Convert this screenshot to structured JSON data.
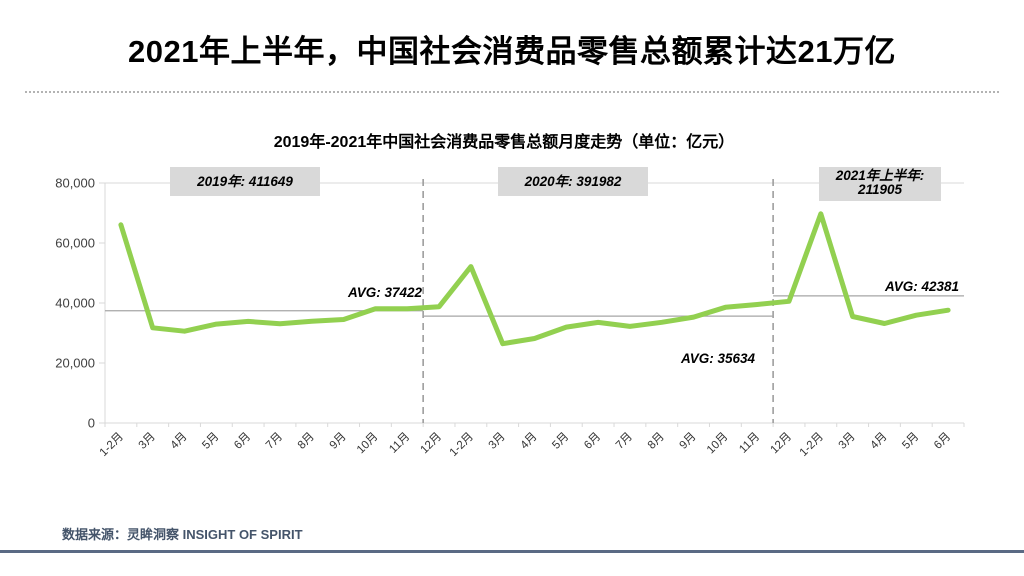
{
  "header": {
    "title": "2021年上半年，中国社会消费品零售总额累计达21万亿"
  },
  "footer": {
    "source": "数据来源：灵眸洞察 INSIGHT OF SPIRIT"
  },
  "chart_data": {
    "type": "line",
    "title": "2019年-2021年中国社会消费品零售总额月度走势（单位：亿元）",
    "categories": [
      "1-2月",
      "3月",
      "4月",
      "5月",
      "6月",
      "7月",
      "8月",
      "9月",
      "10月",
      "11月",
      "12月",
      "1-2月",
      "3月",
      "4月",
      "5月",
      "6月",
      "7月",
      "8月",
      "9月",
      "10月",
      "11月",
      "12月",
      "1-2月",
      "3月",
      "4月",
      "5月",
      "6月"
    ],
    "values": [
      66064,
      31726,
      30586,
      32956,
      33878,
      33073,
      33896,
      34495,
      38104,
      38094,
      38777,
      52130,
      26450,
      28178,
      31973,
      33526,
      32203,
      33571,
      35295,
      38576,
      39514,
      40566,
      69737,
      35484,
      33153,
      35945,
      37586
    ],
    "ylim": [
      0,
      80000
    ],
    "yticks": [
      0,
      20000,
      40000,
      60000,
      80000
    ],
    "ytick_labels": [
      "0",
      "20,000",
      "40,000",
      "60,000",
      "80,000"
    ],
    "grid": "top-border-only",
    "legend": "none",
    "sections": [
      {
        "label_lines": [
          "2019年: 411649"
        ],
        "total": 411649,
        "avg": 37422,
        "avg_label": "AVG: 37422",
        "bounds": [
          0,
          10
        ]
      },
      {
        "label_lines": [
          "2020年: 391982"
        ],
        "total": 391982,
        "avg": 35634,
        "avg_label": "AVG: 35634",
        "bounds": [
          10,
          21
        ]
      },
      {
        "label_lines": [
          "2021年上半年:",
          "211905"
        ],
        "total": 211905,
        "avg": 42381,
        "avg_label": "AVG: 42381",
        "bounds": [
          21,
          27
        ]
      }
    ],
    "separator_boundaries": [
      10,
      21
    ],
    "colors": {
      "line": "#92d050",
      "box": "#d9d9d9",
      "separator": "#9d9d9d",
      "avg_line": "#a6a6a6",
      "axis": "#d9d9d9",
      "footer_bar": "#5a6a84",
      "footer_text": "#44546a"
    }
  }
}
